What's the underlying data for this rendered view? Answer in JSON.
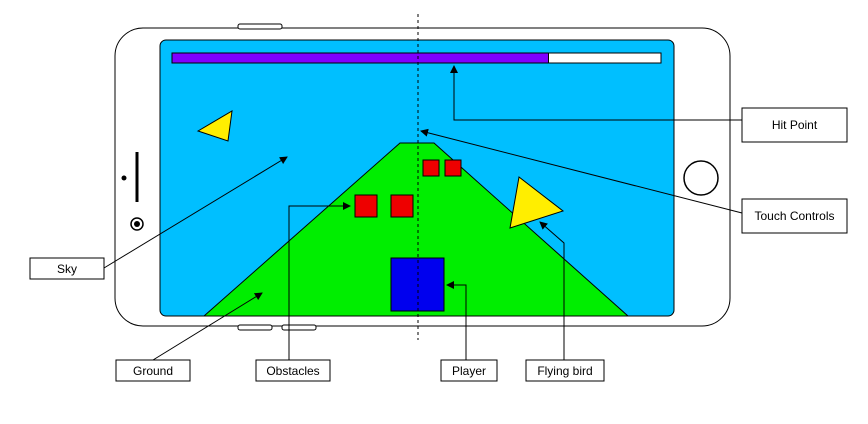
{
  "labels": {
    "hit_point": "Hit Point",
    "touch_controls": "Touch Controls",
    "sky": "Sky",
    "ground": "Ground",
    "obstacles": "Obstacles",
    "player": "Player",
    "flying_bird": "Flying bird"
  },
  "game": {
    "hit_point_fraction": 0.77
  },
  "colors": {
    "sky": "#00BFFF",
    "ground": "#00EE00",
    "health_bar": "#7F00FF",
    "obstacle": "#EE0000",
    "player": "#0000EE",
    "bird": "#FFEE00"
  }
}
